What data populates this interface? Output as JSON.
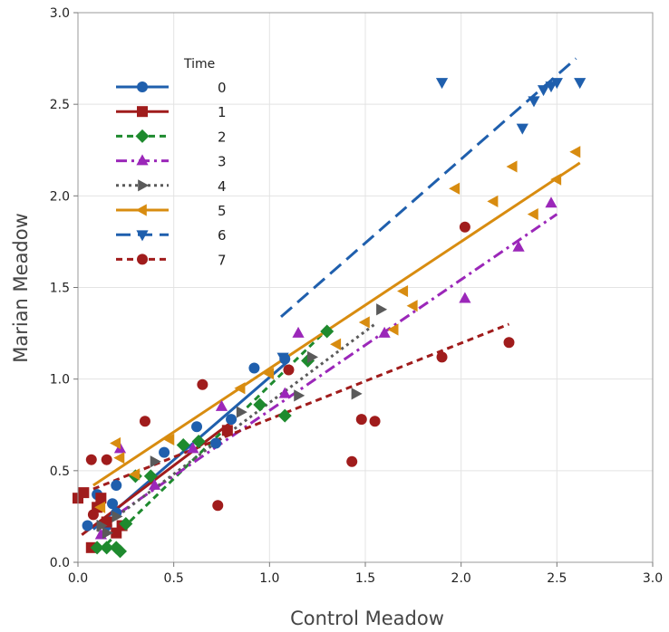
{
  "chart_data": {
    "type": "scatter",
    "xlabel": "Control Meadow",
    "ylabel": "Marian Meadow",
    "xlim": [
      0,
      3
    ],
    "ylim": [
      0,
      3
    ],
    "x_ticks": [
      "0.0",
      "0.5",
      "1.0",
      "1.5",
      "2.0",
      "2.5",
      "3.0"
    ],
    "y_ticks": [
      "0.0",
      "0.5",
      "1.0",
      "1.5",
      "2.0",
      "2.5",
      "3.0"
    ],
    "grid": true,
    "legend_title": "Time",
    "legend_position": "top-left",
    "series": [
      {
        "name": "0",
        "color": "#1f5fad",
        "marker": "circle",
        "dash": "solid",
        "points": [
          [
            0.05,
            0.2
          ],
          [
            0.1,
            0.37
          ],
          [
            0.15,
            0.2
          ],
          [
            0.18,
            0.32
          ],
          [
            0.2,
            0.42
          ],
          [
            0.2,
            0.27
          ],
          [
            0.45,
            0.6
          ],
          [
            0.62,
            0.74
          ],
          [
            0.72,
            0.65
          ],
          [
            0.8,
            0.78
          ],
          [
            0.92,
            1.06
          ],
          [
            1.08,
            1.11
          ]
        ],
        "fit": [
          [
            0.08,
            0.18
          ],
          [
            1.1,
            1.1
          ]
        ]
      },
      {
        "name": "1",
        "color": "#a01c1c",
        "marker": "square",
        "dash": "solid",
        "points": [
          [
            0.0,
            0.35
          ],
          [
            0.03,
            0.38
          ],
          [
            0.07,
            0.08
          ],
          [
            0.1,
            0.3
          ],
          [
            0.12,
            0.35
          ],
          [
            0.15,
            0.22
          ],
          [
            0.2,
            0.16
          ],
          [
            0.23,
            0.2
          ],
          [
            0.78,
            0.72
          ]
        ],
        "fit": [
          [
            0.02,
            0.15
          ],
          [
            0.82,
            0.78
          ]
        ]
      },
      {
        "name": "2",
        "color": "#1e8a2e",
        "marker": "diamond",
        "dash": "dash",
        "points": [
          [
            0.1,
            0.08
          ],
          [
            0.15,
            0.08
          ],
          [
            0.2,
            0.08
          ],
          [
            0.22,
            0.06
          ],
          [
            0.25,
            0.21
          ],
          [
            0.3,
            0.47
          ],
          [
            0.38,
            0.47
          ],
          [
            0.55,
            0.64
          ],
          [
            0.63,
            0.66
          ],
          [
            0.95,
            0.86
          ],
          [
            1.08,
            0.8
          ],
          [
            1.2,
            1.1
          ],
          [
            1.3,
            1.26
          ]
        ],
        "fit": [
          [
            0.15,
            0.1
          ],
          [
            1.3,
            1.27
          ]
        ]
      },
      {
        "name": "3",
        "color": "#9b27b9",
        "marker": "triangle-up",
        "dash": "dashdot",
        "points": [
          [
            0.12,
            0.15
          ],
          [
            0.22,
            0.62
          ],
          [
            0.4,
            0.42
          ],
          [
            0.6,
            0.62
          ],
          [
            0.75,
            0.85
          ],
          [
            1.08,
            0.92
          ],
          [
            1.15,
            1.25
          ],
          [
            1.6,
            1.25
          ],
          [
            2.02,
            1.44
          ],
          [
            2.3,
            1.72
          ],
          [
            2.47,
            1.96
          ]
        ],
        "fit": [
          [
            0.12,
            0.2
          ],
          [
            2.5,
            1.9
          ]
        ]
      },
      {
        "name": "4",
        "color": "#5a5a5a",
        "marker": "triangle-right",
        "dash": "dot",
        "points": [
          [
            0.12,
            0.2
          ],
          [
            0.15,
            0.16
          ],
          [
            0.2,
            0.25
          ],
          [
            0.4,
            0.55
          ],
          [
            0.85,
            0.82
          ],
          [
            1.15,
            0.91
          ],
          [
            1.22,
            1.12
          ],
          [
            1.45,
            0.92
          ],
          [
            1.58,
            1.38
          ]
        ],
        "fit": [
          [
            0.1,
            0.17
          ],
          [
            1.55,
            1.3
          ]
        ]
      },
      {
        "name": "5",
        "color": "#d88c10",
        "marker": "triangle-left",
        "dash": "solid",
        "points": [
          [
            0.12,
            0.3
          ],
          [
            0.2,
            0.65
          ],
          [
            0.22,
            0.57
          ],
          [
            0.3,
            0.48
          ],
          [
            0.48,
            0.67
          ],
          [
            0.85,
            0.95
          ],
          [
            1.0,
            1.03
          ],
          [
            1.35,
            1.19
          ],
          [
            1.5,
            1.31
          ],
          [
            1.65,
            1.27
          ],
          [
            1.7,
            1.48
          ],
          [
            1.75,
            1.4
          ],
          [
            1.97,
            2.04
          ],
          [
            2.17,
            1.97
          ],
          [
            2.27,
            2.16
          ],
          [
            2.38,
            1.9
          ],
          [
            2.5,
            2.09
          ],
          [
            2.6,
            2.24
          ]
        ],
        "fit": [
          [
            0.08,
            0.42
          ],
          [
            2.62,
            2.18
          ]
        ]
      },
      {
        "name": "6",
        "color": "#1f5fad",
        "marker": "triangle-down",
        "dash": "longdash",
        "points": [
          [
            1.07,
            1.12
          ],
          [
            1.9,
            2.62
          ],
          [
            2.32,
            2.37
          ],
          [
            2.38,
            2.52
          ],
          [
            2.43,
            2.58
          ],
          [
            2.47,
            2.6
          ],
          [
            2.5,
            2.62
          ],
          [
            2.62,
            2.62
          ]
        ],
        "fit": [
          [
            1.06,
            1.34
          ],
          [
            2.6,
            2.75
          ]
        ]
      },
      {
        "name": "7",
        "color": "#a01c1c",
        "marker": "circle",
        "dash": "dash",
        "points": [
          [
            0.07,
            0.56
          ],
          [
            0.08,
            0.26
          ],
          [
            0.15,
            0.56
          ],
          [
            0.35,
            0.77
          ],
          [
            0.65,
            0.97
          ],
          [
            0.73,
            0.31
          ],
          [
            1.1,
            1.05
          ],
          [
            1.43,
            0.55
          ],
          [
            1.48,
            0.78
          ],
          [
            1.55,
            0.77
          ],
          [
            1.9,
            1.12
          ],
          [
            2.02,
            1.83
          ],
          [
            2.25,
            1.2
          ]
        ],
        "fit": [
          [
            0.08,
            0.4
          ],
          [
            2.25,
            1.3
          ]
        ]
      }
    ]
  }
}
